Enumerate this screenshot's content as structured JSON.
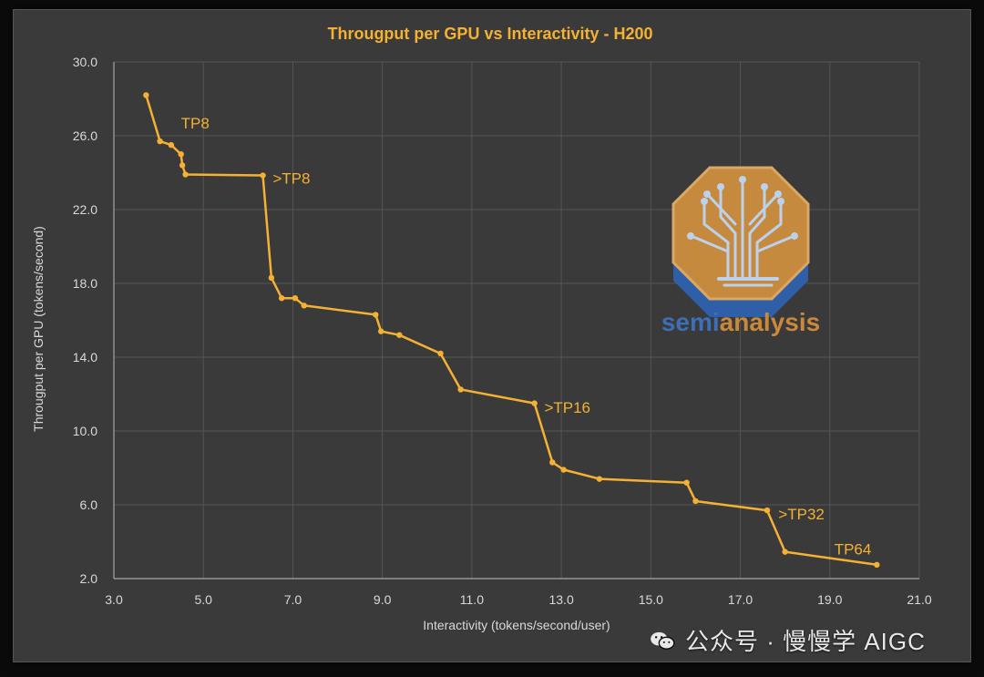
{
  "chart_data": {
    "type": "line",
    "title": "Througput per GPU vs Interactivity - H200",
    "xlabel": "Interactivity (tokens/second/user)",
    "ylabel": "Througput per GPU (tokens/second)",
    "xlim": [
      3.0,
      21.0
    ],
    "ylim": [
      2.0,
      30.0
    ],
    "xticks": [
      "3.0",
      "5.0",
      "7.0",
      "9.0",
      "11.0",
      "13.0",
      "15.0",
      "17.0",
      "19.0",
      "21.0"
    ],
    "yticks": [
      "2.0",
      "6.0",
      "10.0",
      "14.0",
      "18.0",
      "22.0",
      "26.0",
      "30.0"
    ],
    "grid": true,
    "series": [
      {
        "name": "H200",
        "color": "#f5b133",
        "x": [
          3.72,
          4.03,
          4.28,
          4.5,
          4.53,
          4.6,
          6.33,
          6.52,
          6.75,
          7.05,
          7.25,
          8.85,
          8.97,
          9.38,
          10.3,
          10.75,
          12.4,
          12.8,
          13.05,
          13.85,
          15.8,
          16.0,
          17.6,
          18.0,
          20.05
        ],
        "y": [
          28.2,
          25.7,
          25.5,
          25.0,
          24.4,
          23.9,
          23.85,
          18.3,
          17.2,
          17.2,
          16.8,
          16.3,
          15.4,
          15.2,
          14.2,
          12.25,
          11.5,
          8.3,
          7.9,
          7.4,
          7.2,
          6.2,
          5.7,
          3.45,
          2.75
        ]
      }
    ],
    "annotations": [
      {
        "text": "TP8",
        "x": 4.5,
        "y": 26.4
      },
      {
        "text": ">TP8",
        "x": 6.55,
        "y": 23.4
      },
      {
        "text": ">TP16",
        "x": 12.62,
        "y": 11.0
      },
      {
        "text": ">TP32",
        "x": 17.85,
        "y": 5.2
      },
      {
        "text": "TP64",
        "x": 19.1,
        "y": 3.3
      }
    ],
    "axis_color": "#a6a6a6",
    "grid_color": "#555555",
    "text_color": "#d9d9d9",
    "title_color": "#f5b133"
  },
  "logo": {
    "text_semi": "semi",
    "text_analysis": "analysis",
    "color_semi": "#3d6fb6",
    "color_analysis": "#c9883a"
  },
  "watermark": {
    "text": "公众号 · 慢慢学 AIGC"
  }
}
